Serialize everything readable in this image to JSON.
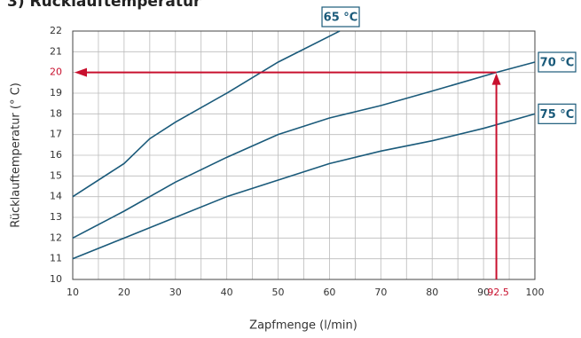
{
  "chart_data": {
    "type": "line",
    "title": "3) Rücklauftemperatur",
    "x_label": "Zapfmenge (l/min)",
    "y_label": "Rücklauftemperatur (° C)",
    "xlim": [
      10,
      100
    ],
    "ylim": [
      10,
      22
    ],
    "xticks": [
      10,
      20,
      30,
      40,
      50,
      60,
      70,
      80,
      90,
      100
    ],
    "yticks": [
      10,
      11,
      12,
      13,
      14,
      15,
      16,
      17,
      18,
      19,
      20,
      21,
      22
    ],
    "grid": true,
    "marker": {
      "x": 92.5,
      "y": 20,
      "x_label": "92.5",
      "color": "#c8102e"
    },
    "series": [
      {
        "name": "65 °C",
        "color": "#1a5a7a",
        "x": [
          10,
          20,
          25,
          30,
          40,
          50,
          62
        ],
        "values": [
          14,
          15.6,
          16.8,
          17.6,
          19,
          20.5,
          22
        ]
      },
      {
        "name": "70 °C",
        "color": "#1a5a7a",
        "x": [
          10,
          20,
          30,
          40,
          50,
          60,
          70,
          80,
          92.5,
          100
        ],
        "values": [
          12,
          13.3,
          14.7,
          15.9,
          17,
          17.8,
          18.4,
          19.1,
          20,
          20.5
        ]
      },
      {
        "name": "75 °C",
        "color": "#1a5a7a",
        "x": [
          10,
          20,
          30,
          40,
          50,
          60,
          70,
          80,
          90,
          100
        ],
        "values": [
          11,
          12,
          13,
          14,
          14.8,
          15.6,
          16.2,
          16.7,
          17.3,
          18
        ]
      }
    ]
  }
}
